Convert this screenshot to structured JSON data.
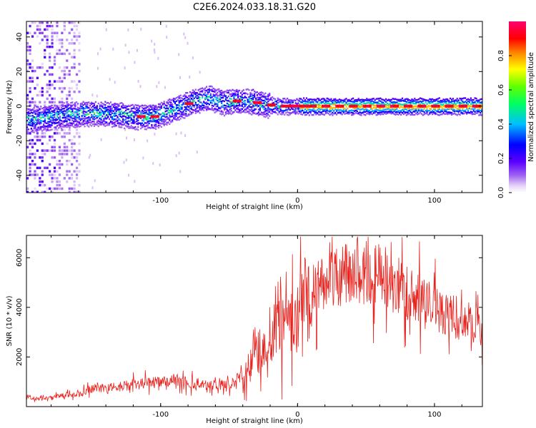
{
  "title": "C2E6.2024.033.18.31.G20",
  "colors": {
    "snr_line": "#e8241f",
    "axis": "#000000",
    "colormap": [
      "#ffffff",
      "#d8b8f0",
      "#8c3cf0",
      "#4b00ff",
      "#0000ff",
      "#00c8ff",
      "#00ff80",
      "#80ff00",
      "#ffff00",
      "#ff8000",
      "#ff0000",
      "#ff0080"
    ]
  },
  "chart_data": [
    {
      "type": "heatmap",
      "xlabel": "Height of straight line (km)",
      "ylabel": "Frequency (Hz)",
      "xlim": [
        -198,
        135
      ],
      "ylim": [
        -50,
        49
      ],
      "x_ticks": [
        -100,
        0,
        100
      ],
      "y_ticks": [
        -40,
        -20,
        0,
        20,
        40
      ],
      "description_values": {
        "ridge_center_hz": [
          [
            -198,
            -8
          ],
          [
            -170,
            -5
          ],
          [
            -150,
            -4
          ],
          [
            -130,
            -5
          ],
          [
            -120,
            -6
          ],
          [
            -105,
            -6
          ],
          [
            -95,
            -3
          ],
          [
            -85,
            0
          ],
          [
            -75,
            3
          ],
          [
            -65,
            5
          ],
          [
            -55,
            2
          ],
          [
            -45,
            3
          ],
          [
            -35,
            3
          ],
          [
            -25,
            1
          ],
          [
            -10,
            0
          ],
          [
            0,
            0
          ],
          [
            50,
            0
          ],
          [
            135,
            0
          ]
        ],
        "peak_amplitude_points_km": [
          -115,
          -105,
          -80,
          -45,
          -30,
          -20,
          -10,
          -5,
          0,
          5,
          10,
          20,
          30,
          40,
          50,
          60,
          70,
          80,
          90,
          100,
          110,
          120,
          130
        ]
      },
      "colorbar": {
        "label": "Normalized spectral amplitude",
        "range": [
          0,
          1
        ],
        "ticks": [
          {
            "value": 0.0,
            "label": "0.0"
          },
          {
            "value": 0.2,
            "label": "0.2"
          },
          {
            "value": 0.4,
            "label": "0.4"
          },
          {
            "value": 0.6,
            "label": "0.6"
          },
          {
            "value": 0.8,
            "label": "0.8"
          }
        ]
      }
    },
    {
      "type": "line",
      "xlabel": "Height of straight line (km)",
      "ylabel": "SNR (10 * v/v)",
      "xlim": [
        -198,
        135
      ],
      "ylim": [
        0,
        6900
      ],
      "x_ticks": [
        -100,
        0,
        100
      ],
      "y_ticks": [
        2000,
        4000,
        6000
      ],
      "series": [
        {
          "x": [
            -198,
            -190,
            -180,
            -170,
            -160,
            -150,
            -140,
            -130,
            -120,
            -110,
            -100,
            -90,
            -80,
            -70,
            -60,
            -50,
            -40,
            -35,
            -30,
            -25,
            -20,
            -15,
            -10,
            -5,
            0,
            5,
            10,
            20,
            30,
            40,
            50,
            60,
            70,
            80,
            90,
            100,
            110,
            120,
            130,
            135
          ],
          "values": [
            400,
            300,
            350,
            450,
            500,
            700,
            750,
            800,
            900,
            950,
            1000,
            1100,
            950,
            900,
            850,
            900,
            1200,
            1600,
            2000,
            2400,
            3000,
            3600,
            3800,
            3300,
            3800,
            4200,
            4600,
            5000,
            5300,
            5500,
            5400,
            5300,
            5000,
            4600,
            4300,
            4000,
            3700,
            3500,
            3300,
            3200
          ]
        }
      ]
    }
  ],
  "tick_labels": {
    "x": [
      "-100",
      "0",
      "100"
    ],
    "y_top": [
      "-40",
      "-20",
      "0",
      "20",
      "40"
    ],
    "y_bottom": [
      "2000",
      "4000",
      "6000"
    ],
    "colorbar": [
      "0.0",
      "0.2",
      "0.4",
      "0.6",
      "0.8"
    ]
  }
}
